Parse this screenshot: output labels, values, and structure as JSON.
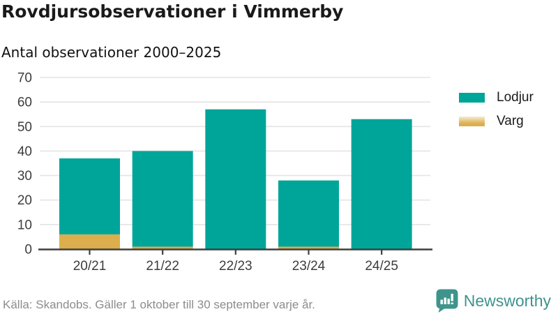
{
  "header": {
    "title": "Rovdjursobservationer i Vimmerby",
    "subtitle": "Antal observationer 2000–2025"
  },
  "footer": {
    "source": "Källa: Skandobs. Gäller 1 oktober till 30 september varje år.",
    "brand": "Newsworthy"
  },
  "colors": {
    "lodjur": "#00a59a",
    "varg": "#dcae4e",
    "varg_swatch_top": "#f6ecd2",
    "brand_teal": "#3e948c",
    "axis_line": "#3f3f3f",
    "tick_text": "#3d3d3d",
    "grid_line": "#e4e4e4",
    "title_text": "#1a1a1a",
    "muted_text": "#8c8c8c"
  },
  "chart_data": {
    "type": "bar",
    "stacked": true,
    "title": "Rovdjursobservationer i Vimmerby",
    "subtitle": "Antal observationer 2000–2025",
    "categories": [
      "20/21",
      "21/22",
      "22/23",
      "23/24",
      "24/25"
    ],
    "series": [
      {
        "name": "Lodjur",
        "color": "#00a59a",
        "values": [
          31,
          39,
          57,
          27,
          53
        ]
      },
      {
        "name": "Varg",
        "color": "#dcae4e",
        "swatch_top": "#f6ecd2",
        "values": [
          6,
          1,
          0,
          1,
          0
        ]
      }
    ],
    "stack_bottom_to_top": [
      "Varg",
      "Lodjur"
    ],
    "stacked_totals": [
      37,
      40,
      57,
      28,
      53
    ],
    "xlabel": "",
    "ylabel": "",
    "ylim": [
      0,
      70
    ],
    "ytick_step": 10,
    "yticks": [
      0,
      10,
      20,
      30,
      40,
      50,
      60,
      70
    ],
    "grid": "horizontal",
    "legend_position": "right"
  }
}
